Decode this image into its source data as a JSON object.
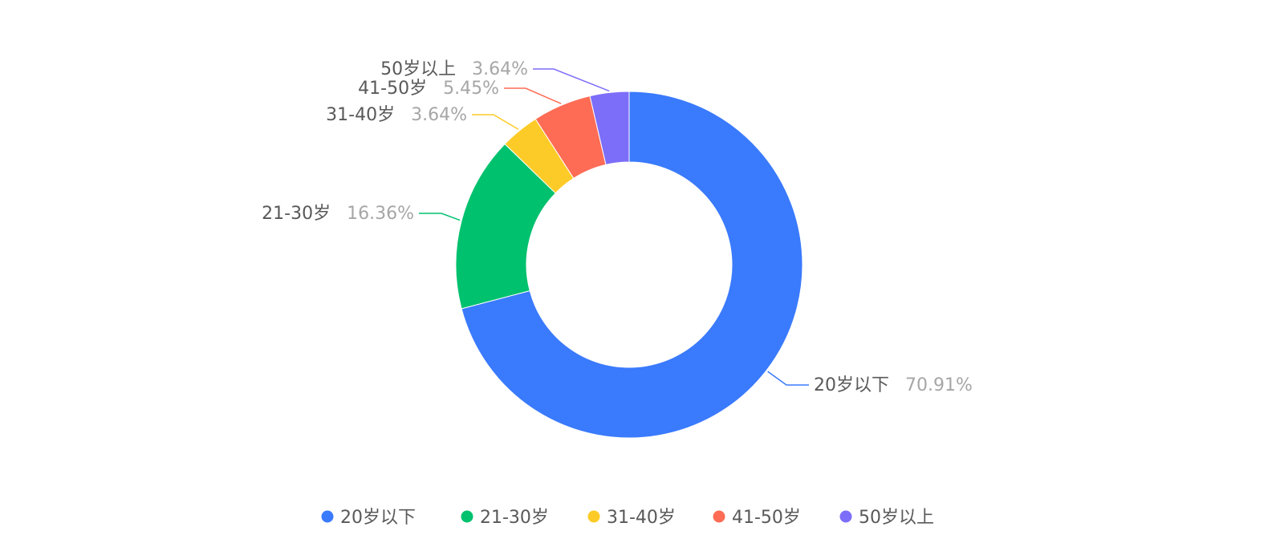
{
  "chart_data": {
    "type": "pie",
    "variant": "donut",
    "slices": [
      {
        "label": "20岁以下",
        "percent_label": "70.91%",
        "value": 70.91,
        "color": "#3a7afd"
      },
      {
        "label": "21-30岁",
        "percent_label": "16.36%",
        "value": 16.36,
        "color": "#00c16e"
      },
      {
        "label": "31-40岁",
        "percent_label": "3.64%",
        "value": 3.64,
        "color": "#fdcb28"
      },
      {
        "label": "41-50岁",
        "percent_label": "5.45%",
        "value": 5.45,
        "color": "#fe6c55"
      },
      {
        "label": "50岁以上",
        "percent_label": "3.64%",
        "value": 3.64,
        "color": "#7d6ef9"
      }
    ],
    "legend": {
      "placement": "bottom",
      "items": [
        "20岁以下",
        "21-30岁",
        "31-40岁",
        "41-50岁",
        "50岁以上"
      ]
    }
  }
}
